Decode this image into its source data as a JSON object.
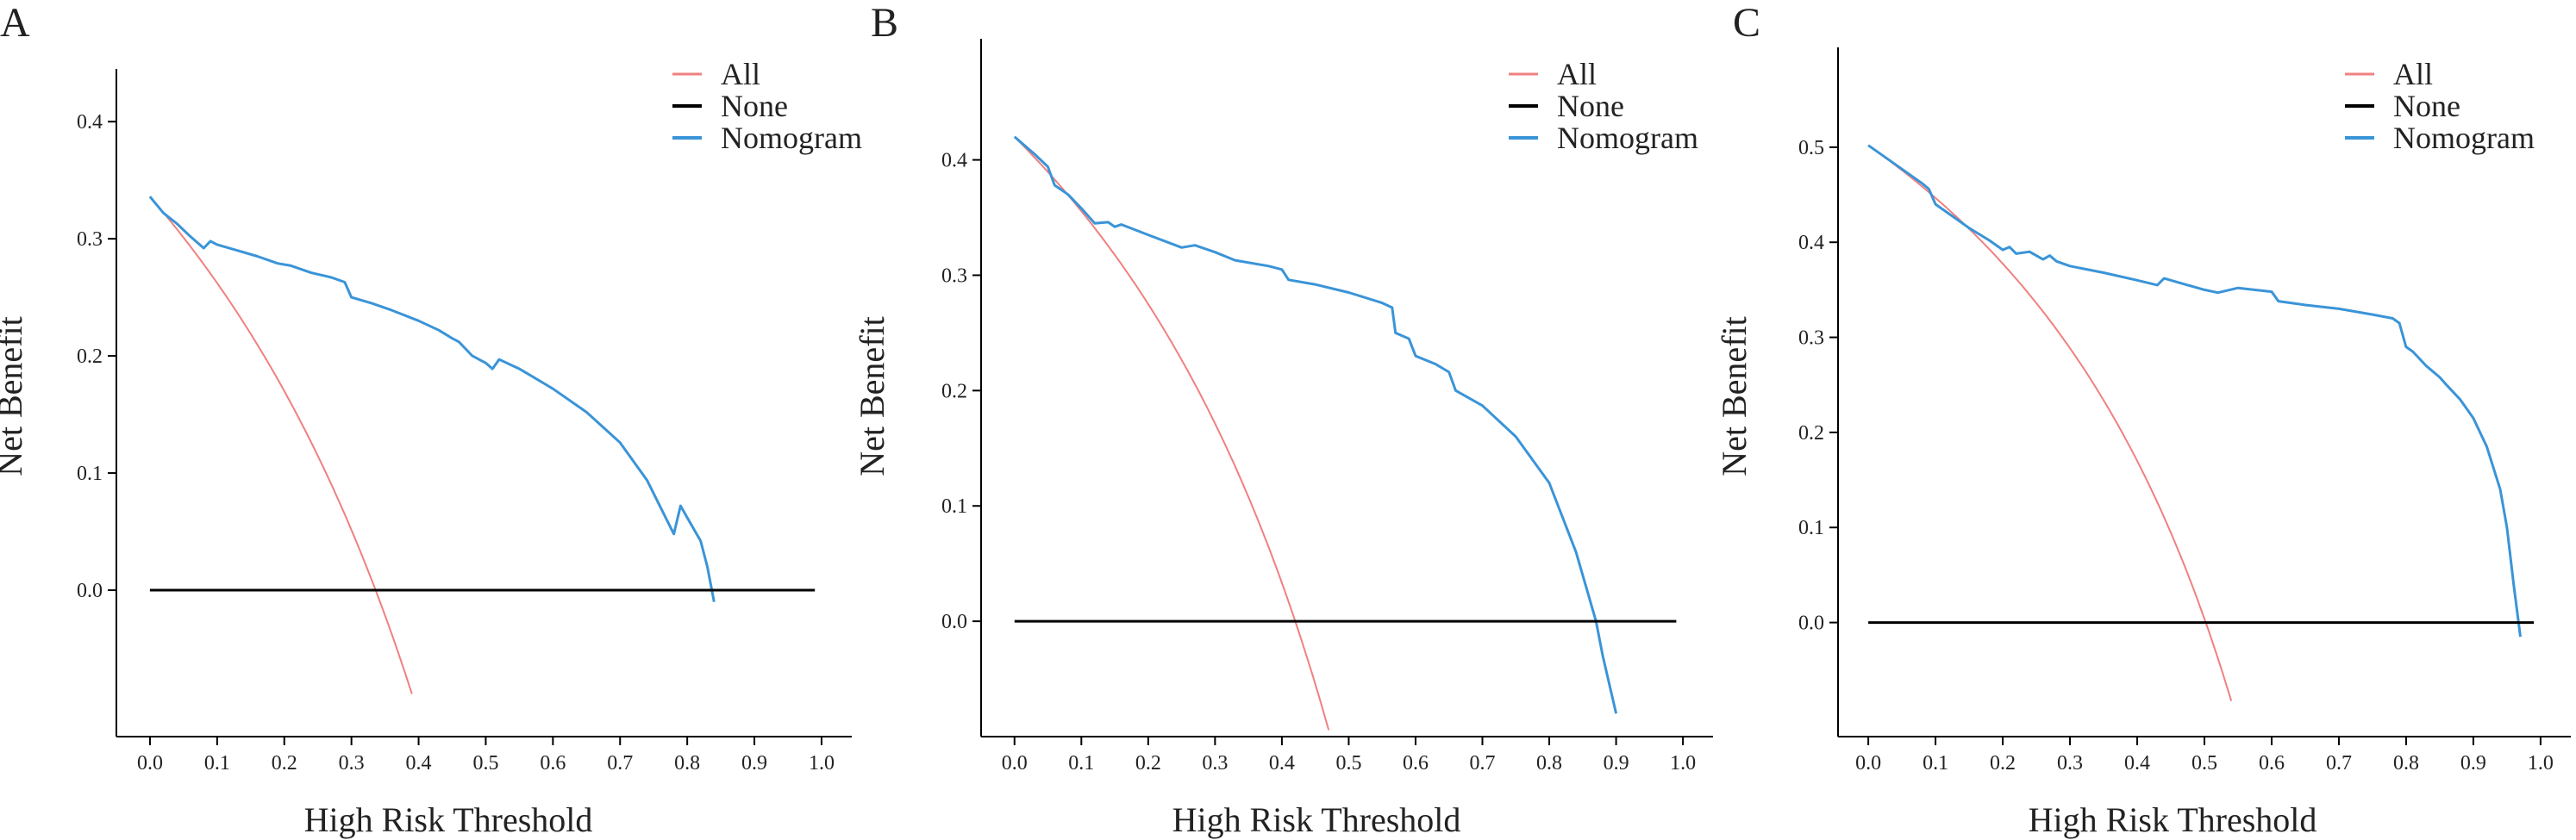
{
  "figure": {
    "colors": {
      "all": "#f08080",
      "none": "#000000",
      "nomogram": "#3a94d8",
      "axis": "#000000"
    }
  },
  "chart_data": [
    {
      "panel": "A",
      "type": "line",
      "xlabel": "High Risk Threshold",
      "ylabel": "Net Benefit",
      "xlim": [
        -0.05,
        1.045
      ],
      "ylim": [
        -0.125,
        0.445
      ],
      "xticks": [
        0.0,
        0.1,
        0.2,
        0.3,
        0.4,
        0.5,
        0.6,
        0.7,
        0.8,
        0.9,
        1.0
      ],
      "xtick_labels": [
        "0.0",
        "0.1",
        "0.2",
        "0.3",
        "0.4",
        "0.5",
        "0.6",
        "0.7",
        "0.8",
        "0.9",
        "1.0"
      ],
      "yticks": [
        0.0,
        0.1,
        0.2,
        0.3,
        0.4
      ],
      "ytick_labels": [
        "0.0",
        "0.1",
        "0.2",
        "0.3",
        "0.4"
      ],
      "legend": [
        "All",
        "None",
        "Nomogram"
      ],
      "legend_position": "top-right",
      "series": [
        {
          "name": "All",
          "prevalence": 0.336,
          "x": [
            0.0,
            0.05,
            0.1,
            0.15,
            0.2,
            0.25,
            0.3,
            0.35,
            0.39
          ],
          "y": [
            0.336,
            0.301,
            0.262,
            0.218,
            0.17,
            0.115,
            0.051,
            -0.022,
            -0.088
          ]
        },
        {
          "name": "None",
          "x": [
            0.0,
            0.99
          ],
          "y": [
            0.0,
            0.0
          ]
        },
        {
          "name": "Nomogram",
          "x": [
            0.0,
            0.02,
            0.04,
            0.06,
            0.08,
            0.09,
            0.1,
            0.13,
            0.16,
            0.19,
            0.21,
            0.24,
            0.27,
            0.29,
            0.3,
            0.33,
            0.36,
            0.4,
            0.43,
            0.45,
            0.46,
            0.48,
            0.5,
            0.51,
            0.52,
            0.55,
            0.6,
            0.65,
            0.7,
            0.74,
            0.78,
            0.79,
            0.8,
            0.82,
            0.83,
            0.84
          ],
          "y": [
            0.336,
            0.322,
            0.313,
            0.302,
            0.292,
            0.298,
            0.295,
            0.29,
            0.285,
            0.279,
            0.277,
            0.271,
            0.267,
            0.263,
            0.25,
            0.245,
            0.239,
            0.23,
            0.222,
            0.215,
            0.212,
            0.2,
            0.194,
            0.189,
            0.197,
            0.189,
            0.172,
            0.152,
            0.126,
            0.094,
            0.048,
            0.072,
            0.062,
            0.042,
            0.02,
            -0.01
          ]
        }
      ]
    },
    {
      "panel": "B",
      "type": "line",
      "xlabel": "High Risk Threshold",
      "ylabel": "Net Benefit",
      "xlim": [
        -0.05,
        1.045
      ],
      "ylim": [
        -0.1,
        0.505
      ],
      "xticks": [
        0.0,
        0.1,
        0.2,
        0.3,
        0.4,
        0.5,
        0.6,
        0.7,
        0.8,
        0.9,
        1.0
      ],
      "xtick_labels": [
        "0.0",
        "0.1",
        "0.2",
        "0.3",
        "0.4",
        "0.5",
        "0.6",
        "0.7",
        "0.8",
        "0.9",
        "1.0"
      ],
      "yticks": [
        0.0,
        0.1,
        0.2,
        0.3,
        0.4
      ],
      "ytick_labels": [
        "0.0",
        "0.1",
        "0.2",
        "0.3",
        "0.4"
      ],
      "legend": [
        "All",
        "None",
        "Nomogram"
      ],
      "legend_position": "top-right",
      "series": [
        {
          "name": "All",
          "prevalence": 0.42,
          "x": [
            0.0,
            0.05,
            0.1,
            0.15,
            0.2,
            0.25,
            0.3,
            0.35,
            0.4,
            0.45,
            0.47
          ],
          "y": [
            0.42,
            0.389,
            0.356,
            0.318,
            0.275,
            0.227,
            0.171,
            0.108,
            0.033,
            -0.055,
            -0.094
          ]
        },
        {
          "name": "None",
          "x": [
            0.0,
            0.99
          ],
          "y": [
            0.0,
            0.0
          ]
        },
        {
          "name": "Nomogram",
          "x": [
            0.0,
            0.03,
            0.05,
            0.06,
            0.08,
            0.1,
            0.12,
            0.14,
            0.15,
            0.16,
            0.2,
            0.25,
            0.27,
            0.3,
            0.33,
            0.38,
            0.4,
            0.41,
            0.45,
            0.5,
            0.55,
            0.565,
            0.57,
            0.59,
            0.6,
            0.63,
            0.65,
            0.66,
            0.7,
            0.75,
            0.8,
            0.84,
            0.87,
            0.88,
            0.9
          ],
          "y": [
            0.42,
            0.405,
            0.394,
            0.378,
            0.37,
            0.358,
            0.345,
            0.346,
            0.342,
            0.344,
            0.335,
            0.324,
            0.326,
            0.32,
            0.313,
            0.308,
            0.305,
            0.296,
            0.292,
            0.285,
            0.276,
            0.272,
            0.25,
            0.245,
            0.23,
            0.223,
            0.216,
            0.2,
            0.187,
            0.16,
            0.12,
            0.06,
            0.0,
            -0.03,
            -0.08
          ]
        }
      ]
    },
    {
      "panel": "C",
      "type": "line",
      "xlabel": "High Risk Threshold",
      "ylabel": "Net Benefit",
      "xlim": [
        -0.045,
        1.045
      ],
      "ylim": [
        -0.12,
        0.605
      ],
      "xticks": [
        0.0,
        0.1,
        0.2,
        0.3,
        0.4,
        0.5,
        0.6,
        0.7,
        0.8,
        0.9,
        1.0
      ],
      "xtick_labels": [
        "0.0",
        "0.1",
        "0.2",
        "0.3",
        "0.4",
        "0.5",
        "0.6",
        "0.7",
        "0.8",
        "0.9",
        "1.0"
      ],
      "yticks": [
        0.0,
        0.1,
        0.2,
        0.3,
        0.4,
        0.5
      ],
      "ytick_labels": [
        "0.0",
        "0.1",
        "0.2",
        "0.3",
        "0.4",
        "0.5"
      ],
      "legend": [
        "All",
        "None",
        "Nomogram"
      ],
      "legend_position": "top-right",
      "series": [
        {
          "name": "All",
          "prevalence": 0.502,
          "x": [
            0.0,
            0.05,
            0.1,
            0.15,
            0.2,
            0.25,
            0.3,
            0.35,
            0.4,
            0.45,
            0.5,
            0.54
          ],
          "y": [
            0.502,
            0.476,
            0.447,
            0.414,
            0.378,
            0.336,
            0.289,
            0.234,
            0.17,
            0.095,
            0.004,
            -0.08
          ]
        },
        {
          "name": "None",
          "x": [
            0.0,
            0.99
          ],
          "y": [
            0.0,
            0.0
          ]
        },
        {
          "name": "Nomogram",
          "x": [
            0.0,
            0.04,
            0.08,
            0.09,
            0.1,
            0.12,
            0.15,
            0.18,
            0.2,
            0.21,
            0.22,
            0.24,
            0.26,
            0.27,
            0.28,
            0.3,
            0.35,
            0.4,
            0.43,
            0.44,
            0.46,
            0.5,
            0.52,
            0.55,
            0.6,
            0.61,
            0.65,
            0.7,
            0.75,
            0.78,
            0.79,
            0.8,
            0.81,
            0.83,
            0.85,
            0.86,
            0.88,
            0.9,
            0.92,
            0.94,
            0.95,
            0.96,
            0.97
          ],
          "y": [
            0.502,
            0.482,
            0.462,
            0.456,
            0.44,
            0.43,
            0.415,
            0.402,
            0.392,
            0.395,
            0.388,
            0.39,
            0.382,
            0.386,
            0.38,
            0.375,
            0.368,
            0.36,
            0.355,
            0.362,
            0.358,
            0.35,
            0.347,
            0.352,
            0.348,
            0.338,
            0.334,
            0.33,
            0.324,
            0.32,
            0.315,
            0.29,
            0.285,
            0.27,
            0.258,
            0.25,
            0.235,
            0.215,
            0.185,
            0.14,
            0.1,
            0.04,
            -0.015
          ]
        }
      ]
    }
  ]
}
